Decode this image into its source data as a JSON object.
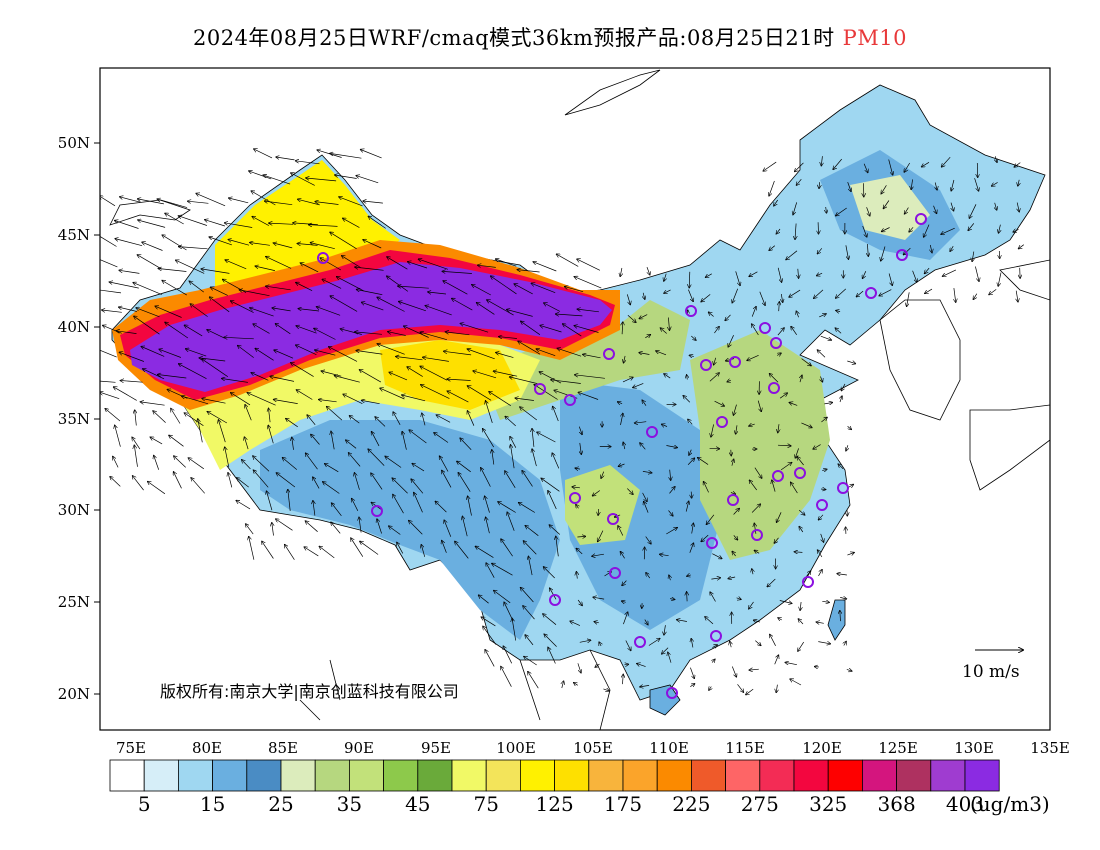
{
  "title": {
    "main": "2024年08月25日WRF/cmaq模式36km预报产品:08月25日21时",
    "variable": "PM10"
  },
  "map": {
    "latitude_ticks": [
      "50N",
      "45N",
      "40N",
      "35N",
      "30N",
      "25N",
      "20N"
    ],
    "longitude_ticks": [
      "75E",
      "80E",
      "85E",
      "90E",
      "95E",
      "100E",
      "105E",
      "110E",
      "115E",
      "120E",
      "125E",
      "130E",
      "135E"
    ],
    "copyright": "版权所有:南京大学|南京创蓝科技有限公司",
    "wind_reference": "10 m/s"
  },
  "colorbar": {
    "colors": [
      "#ffffff",
      "#d6eef8",
      "#9fd7f1",
      "#6aafe0",
      "#4a8cc4",
      "#dcecbc",
      "#b6d77f",
      "#c2e17a",
      "#8dc94b",
      "#6aaa3a",
      "#f1f966",
      "#f3e45a",
      "#fff100",
      "#fee000",
      "#f8b43c",
      "#fba42a",
      "#fb8a00",
      "#ef5a2a",
      "#fe6566",
      "#f32c55",
      "#f3063f",
      "#fe0000",
      "#d4157e",
      "#ae3160",
      "#9f3cd0",
      "#8b2be2"
    ],
    "labels": [
      "5",
      "15",
      "25",
      "35",
      "45",
      "75",
      "125",
      "175",
      "225",
      "275",
      "325",
      "368",
      "403"
    ],
    "unit": "(ug/m3)"
  }
}
